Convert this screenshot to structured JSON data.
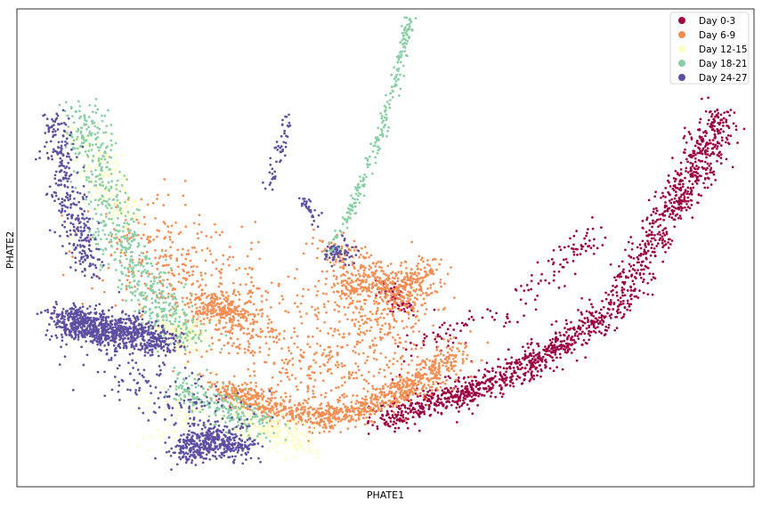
{
  "chart_data": {
    "type": "scatter",
    "xlabel": "PHATE1",
    "ylabel": "PHATE2",
    "xticks": false,
    "yticks": false,
    "grid": false,
    "xlim": [
      0,
      1
    ],
    "ylim": [
      0,
      1
    ],
    "legend_position": "top-right",
    "series": [
      {
        "name": "Day 0-3",
        "color": "#9e0142",
        "clusters": [
          {
            "x": [
              0.493,
              0.553,
              0.601,
              0.653,
              0.701,
              0.748,
              0.805,
              0.849,
              0.885,
              0.912,
              0.937,
              0.958
            ],
            "y": [
              0.14,
              0.17,
              0.195,
              0.225,
              0.262,
              0.305,
              0.37,
              0.47,
              0.57,
              0.64,
              0.71,
              0.79
            ],
            "s": 0.014,
            "n": 1500
          },
          {
            "x": [
              0.65,
              0.7,
              0.73,
              0.765,
              0.79
            ],
            "y": [
              0.34,
              0.4,
              0.46,
              0.5,
              0.55
            ],
            "s": 0.012,
            "n": 90
          },
          {
            "x": [
              0.497,
              0.515,
              0.53
            ],
            "y": [
              0.42,
              0.39,
              0.37
            ],
            "s": 0.01,
            "n": 60
          },
          {
            "x": [
              0.5,
              0.54,
              0.59,
              0.63
            ],
            "y": [
              0.23,
              0.29,
              0.33,
              0.36
            ],
            "s": 0.015,
            "n": 50
          }
        ]
      },
      {
        "name": "Day 6-9",
        "color": "#f88d52",
        "clusters": [
          {
            "x": [
              0.28,
              0.32,
              0.37,
              0.42,
              0.47,
              0.52,
              0.555,
              0.595
            ],
            "y": [
              0.2,
              0.18,
              0.155,
              0.14,
              0.165,
              0.2,
              0.23,
              0.28
            ],
            "s": 0.012,
            "n": 950
          },
          {
            "x": [
              0.25,
              0.28,
              0.31
            ],
            "y": [
              0.39,
              0.37,
              0.35
            ],
            "s": 0.015,
            "n": 220
          },
          {
            "x": [
              0.42,
              0.46,
              0.5,
              0.54
            ],
            "y": [
              0.4,
              0.43,
              0.41,
              0.42
            ],
            "s": 0.016,
            "n": 260
          },
          {
            "x": [
              0.42,
              0.46,
              0.5,
              0.54,
              0.56
            ],
            "y": [
              0.5,
              0.47,
              0.43,
              0.42,
              0.47
            ],
            "s": 0.016,
            "n": 260
          },
          {
            "x": [
              0.46,
              0.5,
              0.55
            ],
            "y": [
              0.34,
              0.36,
              0.4
            ],
            "s": 0.02,
            "n": 120
          },
          {
            "x": [
              0.17,
              0.22,
              0.27,
              0.33,
              0.4,
              0.47,
              0.55
            ],
            "y": [
              0.52,
              0.45,
              0.38,
              0.3,
              0.25,
              0.27,
              0.3
            ],
            "s": 0.05,
            "n": 850
          }
        ]
      },
      {
        "name": "Day 12-15",
        "color": "#ffffbf",
        "clusters": [
          {
            "x": [
              0.09,
              0.11,
              0.13,
              0.15
            ],
            "y": [
              0.75,
              0.68,
              0.61,
              0.55
            ],
            "s": 0.015,
            "n": 180
          },
          {
            "x": [
              0.21,
              0.24
            ],
            "y": [
              0.33,
              0.31
            ],
            "s": 0.015,
            "n": 170
          },
          {
            "x": [
              0.3,
              0.33,
              0.36,
              0.39
            ],
            "y": [
              0.15,
              0.13,
              0.11,
              0.09
            ],
            "s": 0.015,
            "n": 220
          },
          {
            "x": [
              0.2,
              0.25
            ],
            "y": [
              0.1,
              0.2
            ],
            "s": 0.025,
            "n": 80
          }
        ]
      },
      {
        "name": "Day 18-21",
        "color": "#88cfa4",
        "clusters": [
          {
            "x": [
              0.09,
              0.1,
              0.12,
              0.14,
              0.17,
              0.2,
              0.24
            ],
            "y": [
              0.78,
              0.7,
              0.6,
              0.51,
              0.44,
              0.37,
              0.31
            ],
            "s": 0.018,
            "n": 620
          },
          {
            "x": [
              0.22,
              0.26,
              0.3,
              0.34
            ],
            "y": [
              0.22,
              0.18,
              0.15,
              0.12
            ],
            "s": 0.016,
            "n": 230
          },
          {
            "x": [
              0.42,
              0.445,
              0.465,
              0.485,
              0.5,
              0.515,
              0.525,
              0.535
            ],
            "y": [
              0.48,
              0.55,
              0.62,
              0.7,
              0.78,
              0.86,
              0.93,
              0.98
            ],
            "s": 0.004,
            "n": 240
          }
        ]
      },
      {
        "name": "Day 24-27",
        "color": "#5e4fa2",
        "clusters": [
          {
            "x": [
              0.06,
              0.09,
              0.12,
              0.16,
              0.2
            ],
            "y": [
              0.35,
              0.34,
              0.33,
              0.32,
              0.3
            ],
            "s": 0.015,
            "n": 900
          },
          {
            "x": [
              0.05,
              0.06,
              0.07,
              0.085,
              0.1
            ],
            "y": [
              0.77,
              0.68,
              0.6,
              0.52,
              0.45
            ],
            "s": 0.012,
            "n": 320
          },
          {
            "x": [
              0.22,
              0.25,
              0.28,
              0.31
            ],
            "y": [
              0.07,
              0.09,
              0.1,
              0.08
            ],
            "s": 0.014,
            "n": 420
          },
          {
            "x": [
              0.39,
              0.4,
              0.41
            ],
            "y": [
              0.6,
              0.58,
              0.56
            ],
            "s": 0.006,
            "n": 30
          },
          {
            "x": [
              0.34,
              0.355,
              0.37
            ],
            "y": [
              0.62,
              0.7,
              0.78
            ],
            "s": 0.004,
            "n": 50
          },
          {
            "x": [
              0.43,
              0.44
            ],
            "y": [
              0.48,
              0.5
            ],
            "s": 0.01,
            "n": 60
          },
          {
            "x": [
              0.1,
              0.15,
              0.2,
              0.25,
              0.28
            ],
            "y": [
              0.3,
              0.25,
              0.2,
              0.15,
              0.12
            ],
            "s": 0.03,
            "n": 200
          }
        ]
      }
    ]
  }
}
